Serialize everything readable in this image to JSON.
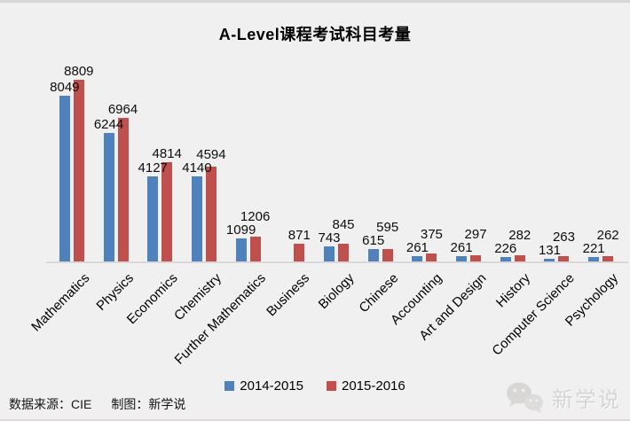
{
  "title": "A-Level课程考试科目考量",
  "legend": {
    "items": [
      {
        "label": "2014-2015",
        "color": "#4F81BD"
      },
      {
        "label": "2015-2016",
        "color": "#C0504D"
      }
    ]
  },
  "footer": {
    "source": "数据来源：CIE",
    "maker": "制图：新学说"
  },
  "watermark": {
    "icon": "wechat-icon",
    "text": "新学说"
  },
  "colors": {
    "background": "#F1F0F0",
    "axis": "#D9D7D7",
    "series1": "#4F81BD",
    "series2": "#C0504D",
    "label": "#0D0D0D"
  },
  "chart_data": {
    "type": "bar",
    "title": "A-Level课程考试科目考量",
    "categories": [
      "Mathematics",
      "Physics",
      "Economics",
      "Chemistry",
      "Further Mathematics",
      "Business",
      "Biology",
      "Chinese",
      "Accounting",
      "Art and Design",
      "History",
      "Computer Science",
      "Psychology"
    ],
    "series": [
      {
        "name": "2014-2015",
        "color": "#4F81BD",
        "values": [
          8049,
          6244,
          4127,
          4140,
          1099,
          null,
          743,
          615,
          261,
          261,
          226,
          131,
          221
        ]
      },
      {
        "name": "2015-2016",
        "color": "#C0504D",
        "values": [
          8809,
          6964,
          4814,
          4594,
          1206,
          871,
          845,
          595,
          375,
          297,
          282,
          263,
          262
        ]
      }
    ],
    "xlabel": "",
    "ylabel": "",
    "ylim": [
      0,
      8809
    ],
    "grid": false,
    "legend_position": "bottom",
    "data_labels": "outside-end",
    "x_tick_rotation": -45
  }
}
